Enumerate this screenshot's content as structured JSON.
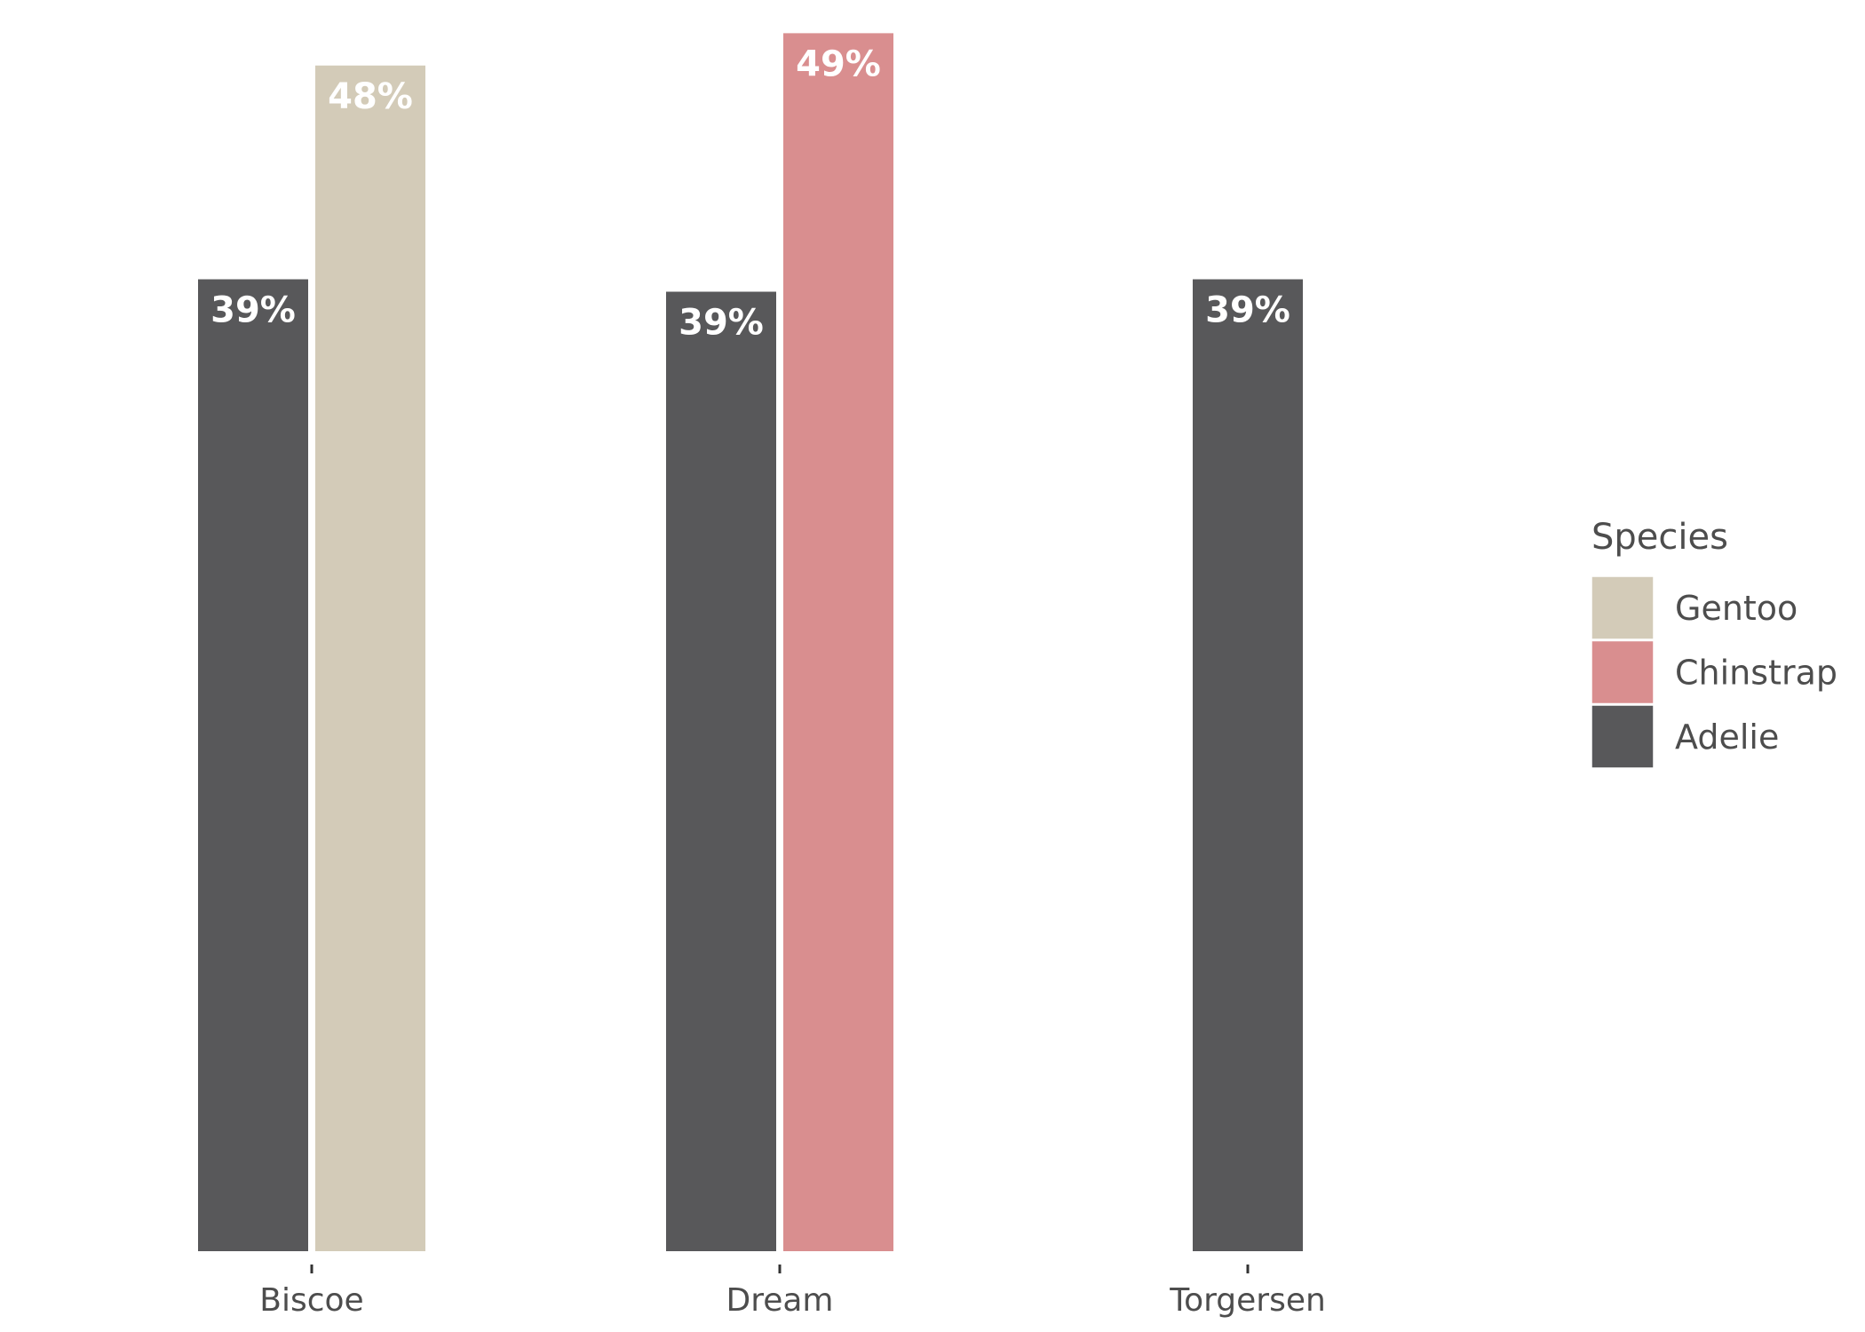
{
  "chart_data": {
    "type": "bar",
    "title": "",
    "xlabel": "",
    "ylabel": "",
    "categories": [
      "Biscoe",
      "Dream",
      "Torgersen"
    ],
    "ylim": [
      0,
      50.3
    ],
    "grid": false,
    "legend_position": "right",
    "legend": {
      "title": "Species",
      "entries": [
        "Gentoo",
        "Chinstrap",
        "Adelie"
      ]
    },
    "colors": {
      "Adelie": "#58585a",
      "Gentoo": "#d3cbb8",
      "Chinstrap": "#d98e8f"
    },
    "bars": [
      {
        "category": "Biscoe",
        "species": "Adelie",
        "value": 39.1,
        "label": "39%"
      },
      {
        "category": "Biscoe",
        "species": "Gentoo",
        "value": 47.7,
        "label": "48%"
      },
      {
        "category": "Dream",
        "species": "Adelie",
        "value": 38.6,
        "label": "39%"
      },
      {
        "category": "Dream",
        "species": "Chinstrap",
        "value": 49.0,
        "label": "49%"
      },
      {
        "category": "Torgersen",
        "species": "Adelie",
        "value": 39.1,
        "label": "39%"
      }
    ]
  }
}
